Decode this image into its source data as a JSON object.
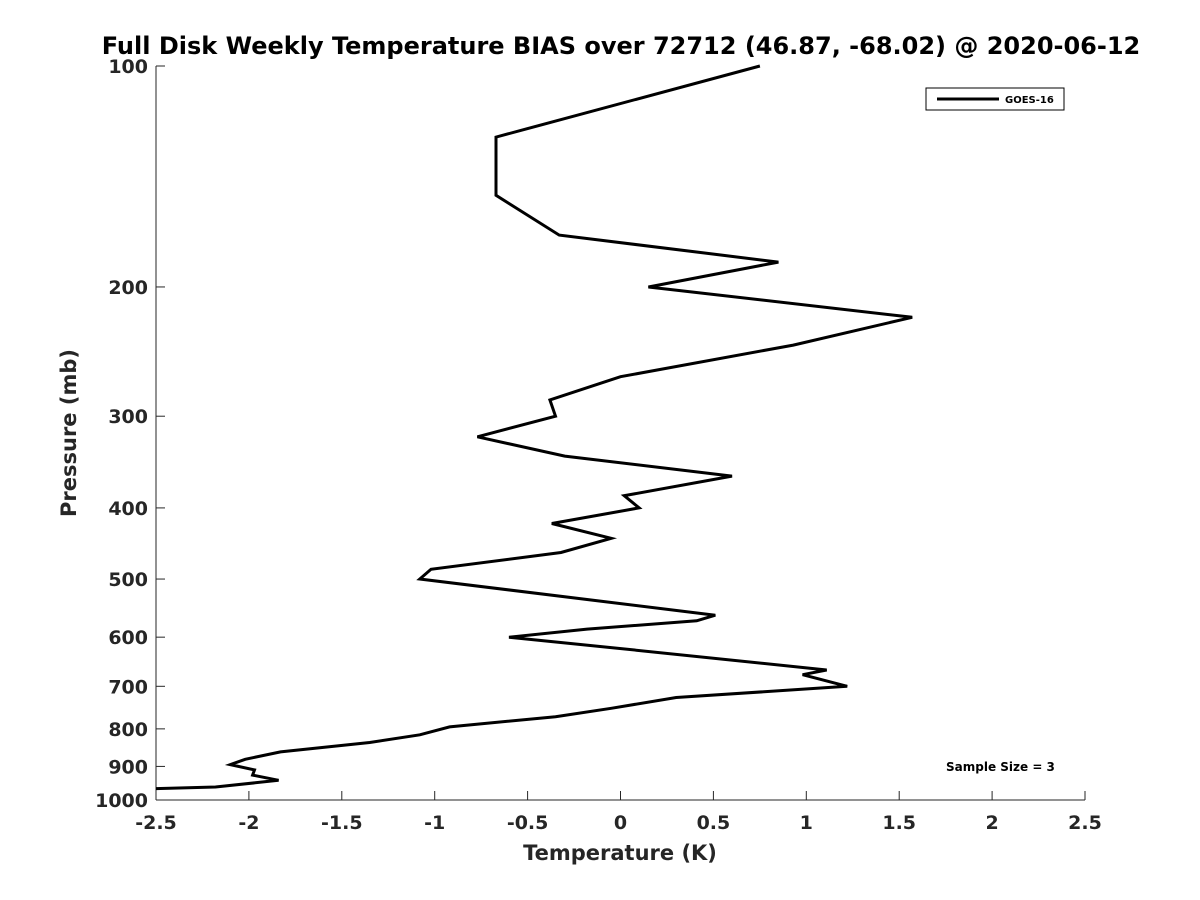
{
  "chart_data": {
    "type": "line",
    "title": "Full Disk Weekly Temperature BIAS over 72712 (46.87, -68.02) @ 2020-06-12",
    "xlabel": "Temperature (K)",
    "ylabel": "Pressure (mb)",
    "xlim": [
      -2.5,
      2.5
    ],
    "ylim": [
      100,
      1000
    ],
    "y_scale": "log",
    "y_reversed": true,
    "x_ticks": [
      {
        "value": -2.5,
        "label": "-2.5"
      },
      {
        "value": -2,
        "label": "-2"
      },
      {
        "value": -1.5,
        "label": "-1.5"
      },
      {
        "value": -1,
        "label": "-1"
      },
      {
        "value": -0.5,
        "label": "-0.5"
      },
      {
        "value": 0,
        "label": "0"
      },
      {
        "value": 0.5,
        "label": "0.5"
      },
      {
        "value": 1,
        "label": "1"
      },
      {
        "value": 1.5,
        "label": "1.5"
      },
      {
        "value": 2,
        "label": "2"
      },
      {
        "value": 2.5,
        "label": "2.5"
      }
    ],
    "y_ticks": [
      {
        "value": 100,
        "label": "100"
      },
      {
        "value": 200,
        "label": "200"
      },
      {
        "value": 300,
        "label": "300"
      },
      {
        "value": 400,
        "label": "400"
      },
      {
        "value": 500,
        "label": "500"
      },
      {
        "value": 600,
        "label": "600"
      },
      {
        "value": 700,
        "label": "700"
      },
      {
        "value": 800,
        "label": "800"
      },
      {
        "value": 900,
        "label": "900"
      },
      {
        "value": 1000,
        "label": "1000"
      }
    ],
    "grid": false,
    "legend_position": "top-right",
    "series": [
      {
        "name": "GOES-16",
        "color": "#000000",
        "points": [
          {
            "x": 0.75,
            "y": 100
          },
          {
            "x": -0.67,
            "y": 125
          },
          {
            "x": -0.67,
            "y": 150
          },
          {
            "x": -0.33,
            "y": 170
          },
          {
            "x": 0.85,
            "y": 185
          },
          {
            "x": 0.15,
            "y": 200
          },
          {
            "x": 1.57,
            "y": 220
          },
          {
            "x": 0.93,
            "y": 240
          },
          {
            "x": 0.0,
            "y": 265
          },
          {
            "x": -0.38,
            "y": 285
          },
          {
            "x": -0.35,
            "y": 300
          },
          {
            "x": -0.77,
            "y": 320
          },
          {
            "x": -0.3,
            "y": 340
          },
          {
            "x": 0.6,
            "y": 362
          },
          {
            "x": 0.02,
            "y": 385
          },
          {
            "x": 0.1,
            "y": 400
          },
          {
            "x": -0.37,
            "y": 420
          },
          {
            "x": -0.05,
            "y": 440
          },
          {
            "x": -0.32,
            "y": 460
          },
          {
            "x": -1.02,
            "y": 485
          },
          {
            "x": -1.08,
            "y": 500
          },
          {
            "x": 0.51,
            "y": 560
          },
          {
            "x": 0.41,
            "y": 570
          },
          {
            "x": -0.18,
            "y": 585
          },
          {
            "x": -0.6,
            "y": 600
          },
          {
            "x": -0.05,
            "y": 620
          },
          {
            "x": 1.11,
            "y": 665
          },
          {
            "x": 0.98,
            "y": 675
          },
          {
            "x": 1.22,
            "y": 700
          },
          {
            "x": 0.3,
            "y": 725
          },
          {
            "x": -0.05,
            "y": 750
          },
          {
            "x": -0.35,
            "y": 770
          },
          {
            "x": -0.92,
            "y": 795
          },
          {
            "x": -1.08,
            "y": 815
          },
          {
            "x": -1.35,
            "y": 835
          },
          {
            "x": -1.83,
            "y": 860
          },
          {
            "x": -2.02,
            "y": 880
          },
          {
            "x": -2.1,
            "y": 895
          },
          {
            "x": -1.97,
            "y": 910
          },
          {
            "x": -1.98,
            "y": 925
          },
          {
            "x": -1.84,
            "y": 940
          },
          {
            "x": -2.18,
            "y": 960
          },
          {
            "x": -2.5,
            "y": 965
          }
        ]
      }
    ],
    "legend": [
      {
        "label": "GOES-16"
      }
    ],
    "annotation": "Sample Size = 3"
  }
}
